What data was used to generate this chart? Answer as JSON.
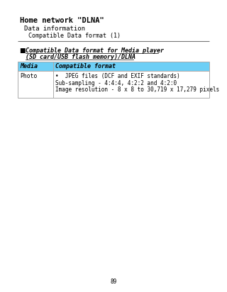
{
  "title_line1": "Home network \"DLNA\"",
  "title_line2": "Data information",
  "title_line3": "Compatible Data format (1)",
  "section_bullet": "■",
  "section_title": "Compatible Data format for Media player",
  "section_subtitle": "(SD card/USB flash memory)/DLNA",
  "table_header_col1": "Media",
  "table_header_col2": "Compatible format",
  "table_header_bg": "#6dcff6",
  "table_row_col1": "Photo",
  "table_row_items": [
    "•  JPEG files (DCF and EXIF standards)",
    "Sub-sampling - 4:4:4, 4:2:2 and 4:2:0",
    "Image resolution - 8 x 8 to 30,719 x 17,279 pixels"
  ],
  "page_number": "89",
  "bg_color": "#ffffff",
  "text_color": "#000000",
  "border_color": "#aaaaaa",
  "separator_color": "#777777",
  "outer_border_color": "#333333",
  "font_family": "monospace"
}
